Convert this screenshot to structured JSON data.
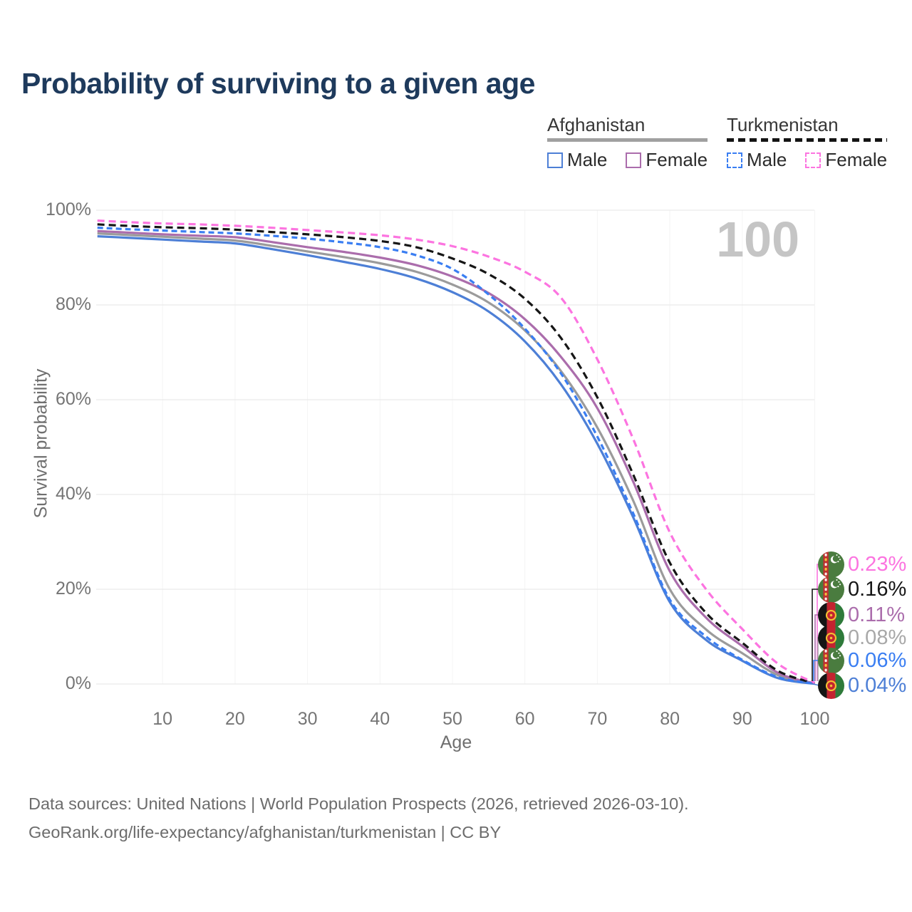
{
  "title": "Probability of surviving to a given age",
  "watermark_age": "100",
  "legend": {
    "groups": [
      {
        "label": "Afghanistan",
        "line_style": "solid",
        "underline_color": "#a0a0a0",
        "items": [
          {
            "label": "Male",
            "color": "#4d7fd6"
          },
          {
            "label": "Female",
            "color": "#ab6dac"
          }
        ]
      },
      {
        "label": "Turkmenistan",
        "line_style": "dashed",
        "underline_color": "#141414",
        "items": [
          {
            "label": "Male",
            "color": "#3a7ef2"
          },
          {
            "label": "Female",
            "color": "#fc74e0"
          }
        ]
      }
    ]
  },
  "yaxis": {
    "label": "Survival probability",
    "ticks": [
      "0%",
      "20%",
      "40%",
      "60%",
      "80%",
      "100%"
    ],
    "tick_values": [
      0,
      20,
      40,
      60,
      80,
      100
    ]
  },
  "xaxis": {
    "label": "Age",
    "ticks": [
      "10",
      "20",
      "30",
      "40",
      "50",
      "60",
      "70",
      "80",
      "90",
      "100"
    ],
    "tick_values": [
      10,
      20,
      30,
      40,
      50,
      60,
      70,
      80,
      90,
      100
    ]
  },
  "chart_data": {
    "type": "line",
    "title": "Probability of surviving to a given age",
    "xlabel": "Age",
    "ylabel": "Survival probability",
    "xlim": [
      0,
      100
    ],
    "ylim": [
      0,
      100
    ],
    "grid": true,
    "x_ages": [
      1,
      5,
      10,
      15,
      20,
      25,
      30,
      35,
      40,
      45,
      50,
      55,
      60,
      65,
      70,
      75,
      80,
      85,
      90,
      95,
      100
    ],
    "series": [
      {
        "name": "Afghanistan (both sexes)",
        "country": "Afghanistan",
        "sex": "both",
        "color": "#9b9b9b",
        "dash": false,
        "values": [
          95.1,
          94.8,
          94.4,
          94.0,
          93.6,
          92.5,
          91.3,
          90.1,
          88.8,
          87.0,
          84.3,
          80.5,
          74.6,
          66.0,
          54.1,
          38.5,
          20.0,
          11.5,
          6.5,
          1.8,
          0.08
        ]
      },
      {
        "name": "Afghanistan Female",
        "country": "Afghanistan",
        "sex": "female",
        "color": "#ab6dac",
        "dash": false,
        "values": [
          95.6,
          95.3,
          94.9,
          94.6,
          94.3,
          93.3,
          92.2,
          91.2,
          90.0,
          88.4,
          86.0,
          82.5,
          77.0,
          69.0,
          58.2,
          42.5,
          23.8,
          14.0,
          8.0,
          2.3,
          0.11
        ]
      },
      {
        "name": "Afghanistan Male",
        "country": "Afghanistan",
        "sex": "male",
        "color": "#4d7fd6",
        "dash": false,
        "values": [
          94.5,
          94.2,
          93.8,
          93.4,
          93.0,
          91.8,
          90.5,
          89.1,
          87.6,
          85.6,
          82.7,
          78.6,
          72.3,
          63.2,
          50.7,
          35.0,
          17.3,
          9.3,
          4.9,
          1.2,
          0.04
        ]
      },
      {
        "name": "Turkmenistan (both sexes)",
        "country": "Turkmenistan",
        "sex": "both",
        "color": "#161616",
        "dash": true,
        "values": [
          97.0,
          96.7,
          96.4,
          96.2,
          95.9,
          95.4,
          94.9,
          94.3,
          93.5,
          92.2,
          89.8,
          86.5,
          81.3,
          73.0,
          60.5,
          44.0,
          25.6,
          15.0,
          8.7,
          2.7,
          0.16
        ]
      },
      {
        "name": "Turkmenistan Female",
        "country": "Turkmenistan",
        "sex": "female",
        "color": "#fc74e0",
        "dash": true,
        "values": [
          97.8,
          97.5,
          97.2,
          97.0,
          96.7,
          96.3,
          95.8,
          95.3,
          94.7,
          93.8,
          92.4,
          90.2,
          87.0,
          81.5,
          68.5,
          51.5,
          32.0,
          20.0,
          11.6,
          4.2,
          0.23
        ]
      },
      {
        "name": "Turkmenistan Male",
        "country": "Turkmenistan",
        "sex": "male",
        "color": "#3a7ef2",
        "dash": true,
        "values": [
          96.3,
          96.0,
          95.7,
          95.4,
          95.1,
          94.6,
          94.0,
          93.2,
          92.2,
          90.5,
          87.6,
          82.2,
          75.0,
          65.5,
          52.2,
          35.8,
          17.8,
          10.0,
          5.1,
          1.4,
          0.06
        ]
      }
    ]
  },
  "end_labels": [
    {
      "value": "0.23%",
      "color": "#fc74e0",
      "flag": "tm",
      "series": "Turkmenistan Female"
    },
    {
      "value": "0.16%",
      "color": "#161616",
      "flag": "tm",
      "series": "Turkmenistan (both sexes)"
    },
    {
      "value": "0.11%",
      "color": "#ab6dac",
      "flag": "af",
      "series": "Afghanistan Female"
    },
    {
      "value": "0.08%",
      "color": "#a8a8a8",
      "flag": "af",
      "series": "Afghanistan (both sexes)"
    },
    {
      "value": "0.06%",
      "color": "#3a7ef2",
      "flag": "tm",
      "series": "Turkmenistan Male"
    },
    {
      "value": "0.04%",
      "color": "#4d7fd6",
      "flag": "af",
      "series": "Afghanistan Male"
    }
  ],
  "footer": {
    "line1": "Data sources: United Nations | World Population Prospects (2026, retrieved 2026-03-10).",
    "line2": "GeoRank.org/life-expectancy/afghanistan/turkmenistan | CC BY"
  }
}
